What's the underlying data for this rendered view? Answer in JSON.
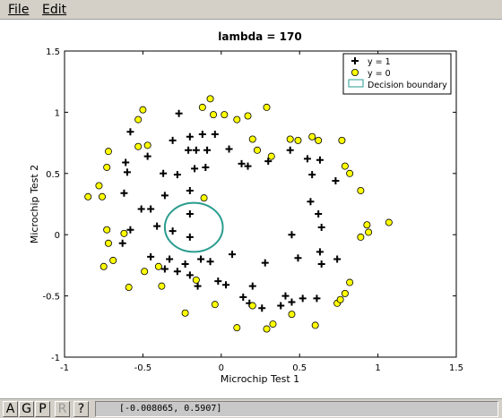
{
  "menu": {
    "file_label": "File",
    "edit_label": "Edit"
  },
  "toolbar": {
    "buttons": [
      "A",
      "G",
      "P",
      "R",
      "?"
    ],
    "coord_readout": "[-0.008065, 0.5907]"
  },
  "colors": {
    "menubar": "#d4d0c8",
    "marker_y0_fill": "#ffff00",
    "marker_y0_edge": "#000000",
    "marker_y1": "#000000",
    "boundary": "#2a9d8f"
  },
  "chart_data": {
    "type": "scatter",
    "title": "lambda = 170",
    "xlabel": "Microchip Test 1",
    "ylabel": "Microchip Test 2",
    "xlim": [
      -1,
      1.5
    ],
    "ylim": [
      -1,
      1.5
    ],
    "xticks": [
      "-1",
      "-0.5",
      "0",
      "0.5",
      "1",
      "1.5"
    ],
    "yticks": [
      "-1",
      "-0.5",
      "0",
      "0.5",
      "1",
      "1.5"
    ],
    "grid": false,
    "legend_position": "top-right",
    "legend": [
      "y = 1",
      "y = 0",
      "Decision boundary"
    ],
    "series": [
      {
        "name": "y = 1",
        "marker": "plus",
        "points": [
          [
            -0.27,
            0.99
          ],
          [
            -0.58,
            0.84
          ],
          [
            -0.31,
            0.77
          ],
          [
            -0.2,
            0.8
          ],
          [
            -0.12,
            0.82
          ],
          [
            -0.04,
            0.82
          ],
          [
            -0.61,
            0.59
          ],
          [
            -0.47,
            0.64
          ],
          [
            -0.21,
            0.69
          ],
          [
            -0.16,
            0.69
          ],
          [
            -0.09,
            0.69
          ],
          [
            0.05,
            0.7
          ],
          [
            -0.6,
            0.51
          ],
          [
            -0.37,
            0.5
          ],
          [
            -0.28,
            0.49
          ],
          [
            -0.17,
            0.54
          ],
          [
            -0.1,
            0.55
          ],
          [
            0.13,
            0.58
          ],
          [
            0.17,
            0.56
          ],
          [
            0.3,
            0.6
          ],
          [
            0.44,
            0.69
          ],
          [
            0.55,
            0.62
          ],
          [
            0.63,
            0.61
          ],
          [
            0.58,
            0.49
          ],
          [
            0.73,
            0.44
          ],
          [
            -0.62,
            0.34
          ],
          [
            -0.36,
            0.32
          ],
          [
            -0.2,
            0.36
          ],
          [
            -0.51,
            0.21
          ],
          [
            -0.45,
            0.21
          ],
          [
            0.57,
            0.27
          ],
          [
            0.62,
            0.17
          ],
          [
            -0.2,
            0.17
          ],
          [
            -0.58,
            0.04
          ],
          [
            -0.41,
            0.07
          ],
          [
            -0.31,
            0.03
          ],
          [
            -0.2,
            -0.02
          ],
          [
            0.45,
            0.0
          ],
          [
            0.64,
            0.06
          ],
          [
            -0.63,
            -0.07
          ],
          [
            -0.45,
            -0.18
          ],
          [
            -0.33,
            -0.2
          ],
          [
            -0.23,
            -0.24
          ],
          [
            -0.07,
            -0.22
          ],
          [
            -0.13,
            -0.2
          ],
          [
            0.07,
            -0.16
          ],
          [
            0.63,
            -0.14
          ],
          [
            0.74,
            -0.2
          ],
          [
            -0.36,
            -0.28
          ],
          [
            -0.28,
            -0.3
          ],
          [
            -0.2,
            -0.33
          ],
          [
            0.49,
            -0.19
          ],
          [
            0.64,
            -0.24
          ],
          [
            0.28,
            -0.23
          ],
          [
            -0.15,
            -0.42
          ],
          [
            -0.02,
            -0.38
          ],
          [
            0.03,
            -0.41
          ],
          [
            0.2,
            -0.42
          ],
          [
            0.14,
            -0.51
          ],
          [
            0.18,
            -0.56
          ],
          [
            0.26,
            -0.6
          ],
          [
            0.38,
            -0.58
          ],
          [
            0.45,
            -0.55
          ],
          [
            0.41,
            -0.5
          ],
          [
            0.52,
            -0.52
          ],
          [
            0.61,
            -0.52
          ]
        ]
      },
      {
        "name": "y = 0",
        "marker": "circle",
        "points": [
          [
            -0.07,
            1.11
          ],
          [
            -0.12,
            1.04
          ],
          [
            -0.05,
            0.98
          ],
          [
            0.02,
            0.98
          ],
          [
            0.17,
            0.97
          ],
          [
            0.29,
            1.04
          ],
          [
            0.1,
            0.94
          ],
          [
            -0.5,
            1.02
          ],
          [
            -0.53,
            0.94
          ],
          [
            -0.72,
            0.68
          ],
          [
            -0.73,
            0.55
          ],
          [
            -0.53,
            0.72
          ],
          [
            -0.47,
            0.73
          ],
          [
            -0.78,
            0.4
          ],
          [
            -0.85,
            0.31
          ],
          [
            -0.76,
            0.31
          ],
          [
            -0.73,
            0.04
          ],
          [
            -0.62,
            0.01
          ],
          [
            -0.72,
            -0.07
          ],
          [
            -0.75,
            -0.26
          ],
          [
            -0.69,
            -0.21
          ],
          [
            -0.59,
            -0.43
          ],
          [
            -0.49,
            -0.3
          ],
          [
            -0.4,
            -0.26
          ],
          [
            -0.38,
            -0.42
          ],
          [
            -0.16,
            -0.37
          ],
          [
            -0.04,
            -0.57
          ],
          [
            -0.23,
            -0.64
          ],
          [
            0.1,
            -0.76
          ],
          [
            0.29,
            -0.77
          ],
          [
            0.2,
            -0.58
          ],
          [
            0.33,
            -0.73
          ],
          [
            0.45,
            -0.65
          ],
          [
            0.6,
            -0.74
          ],
          [
            0.74,
            -0.56
          ],
          [
            0.79,
            -0.48
          ],
          [
            0.82,
            -0.39
          ],
          [
            0.76,
            -0.53
          ],
          [
            0.62,
            0.77
          ],
          [
            0.49,
            0.77
          ],
          [
            0.77,
            0.77
          ],
          [
            0.32,
            0.64
          ],
          [
            0.82,
            0.5
          ],
          [
            0.79,
            0.56
          ],
          [
            0.89,
            0.36
          ],
          [
            0.93,
            0.08
          ],
          [
            0.94,
            0.02
          ],
          [
            0.89,
            -0.02
          ],
          [
            1.07,
            0.1
          ],
          [
            0.23,
            0.69
          ],
          [
            0.44,
            0.78
          ],
          [
            -0.11,
            0.3
          ],
          [
            0.2,
            0.78
          ],
          [
            0.58,
            0.8
          ]
        ]
      },
      {
        "name": "Decision boundary",
        "type": "ellipse",
        "center": [
          -0.175,
          0.06
        ],
        "radius_x": 0.185,
        "radius_y": 0.2
      }
    ]
  }
}
